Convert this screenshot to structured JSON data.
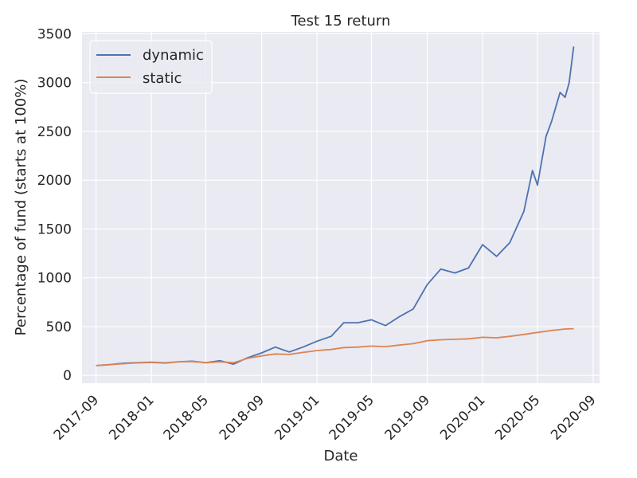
{
  "chart_data": {
    "type": "line",
    "title": "Test 15 return",
    "xlabel": "Date",
    "ylabel": "Percentage of fund (starts at 100%)",
    "x_ticks": [
      "2017-09",
      "2018-01",
      "2018-05",
      "2018-09",
      "2019-01",
      "2019-05",
      "2019-09",
      "2020-01",
      "2020-05",
      "2020-09"
    ],
    "y_ticks": [
      0,
      500,
      1000,
      1500,
      2000,
      2500,
      3000,
      3500
    ],
    "xlim": [
      "2017-08-01",
      "2020-09-15"
    ],
    "ylim": [
      -80,
      3520
    ],
    "grid": true,
    "legend_position": "upper-left",
    "series": [
      {
        "name": "dynamic",
        "color": "#4c72b0",
        "points": [
          [
            "2017-09-01",
            100
          ],
          [
            "2017-10-01",
            110
          ],
          [
            "2017-11-01",
            125
          ],
          [
            "2017-12-01",
            130
          ],
          [
            "2018-01-01",
            135
          ],
          [
            "2018-02-01",
            128
          ],
          [
            "2018-03-01",
            140
          ],
          [
            "2018-04-01",
            145
          ],
          [
            "2018-05-01",
            130
          ],
          [
            "2018-06-01",
            150
          ],
          [
            "2018-07-01",
            115
          ],
          [
            "2018-08-01",
            180
          ],
          [
            "2018-09-01",
            230
          ],
          [
            "2018-10-01",
            290
          ],
          [
            "2018-11-01",
            240
          ],
          [
            "2018-12-01",
            290
          ],
          [
            "2019-01-01",
            350
          ],
          [
            "2019-02-01",
            400
          ],
          [
            "2019-03-01",
            540
          ],
          [
            "2019-04-01",
            540
          ],
          [
            "2019-05-01",
            570
          ],
          [
            "2019-06-01",
            510
          ],
          [
            "2019-07-01",
            600
          ],
          [
            "2019-08-01",
            680
          ],
          [
            "2019-09-01",
            930
          ],
          [
            "2019-10-01",
            1090
          ],
          [
            "2019-11-01",
            1050
          ],
          [
            "2019-12-01",
            1100
          ],
          [
            "2020-01-01",
            1340
          ],
          [
            "2020-02-01",
            1220
          ],
          [
            "2020-03-01",
            1360
          ],
          [
            "2020-04-01",
            1680
          ],
          [
            "2020-04-20",
            2100
          ],
          [
            "2020-05-01",
            1950
          ],
          [
            "2020-05-20",
            2450
          ],
          [
            "2020-06-01",
            2600
          ],
          [
            "2020-06-20",
            2900
          ],
          [
            "2020-07-01",
            2850
          ],
          [
            "2020-07-10",
            3000
          ],
          [
            "2020-07-20",
            3370
          ]
        ]
      },
      {
        "name": "static",
        "color": "#dd8452",
        "points": [
          [
            "2017-09-01",
            100
          ],
          [
            "2017-10-01",
            110
          ],
          [
            "2017-11-01",
            120
          ],
          [
            "2017-12-01",
            128
          ],
          [
            "2018-01-01",
            132
          ],
          [
            "2018-02-01",
            125
          ],
          [
            "2018-03-01",
            140
          ],
          [
            "2018-04-01",
            142
          ],
          [
            "2018-05-01",
            130
          ],
          [
            "2018-06-01",
            140
          ],
          [
            "2018-07-01",
            130
          ],
          [
            "2018-08-01",
            175
          ],
          [
            "2018-09-01",
            200
          ],
          [
            "2018-10-01",
            220
          ],
          [
            "2018-11-01",
            215
          ],
          [
            "2018-12-01",
            235
          ],
          [
            "2019-01-01",
            255
          ],
          [
            "2019-02-01",
            265
          ],
          [
            "2019-03-01",
            285
          ],
          [
            "2019-04-01",
            290
          ],
          [
            "2019-05-01",
            300
          ],
          [
            "2019-06-01",
            295
          ],
          [
            "2019-07-01",
            310
          ],
          [
            "2019-08-01",
            325
          ],
          [
            "2019-09-01",
            355
          ],
          [
            "2019-10-01",
            365
          ],
          [
            "2019-11-01",
            370
          ],
          [
            "2019-12-01",
            375
          ],
          [
            "2020-01-01",
            390
          ],
          [
            "2020-02-01",
            385
          ],
          [
            "2020-03-01",
            400
          ],
          [
            "2020-04-01",
            420
          ],
          [
            "2020-05-01",
            440
          ],
          [
            "2020-06-01",
            460
          ],
          [
            "2020-07-01",
            475
          ],
          [
            "2020-07-20",
            478
          ]
        ]
      }
    ]
  }
}
